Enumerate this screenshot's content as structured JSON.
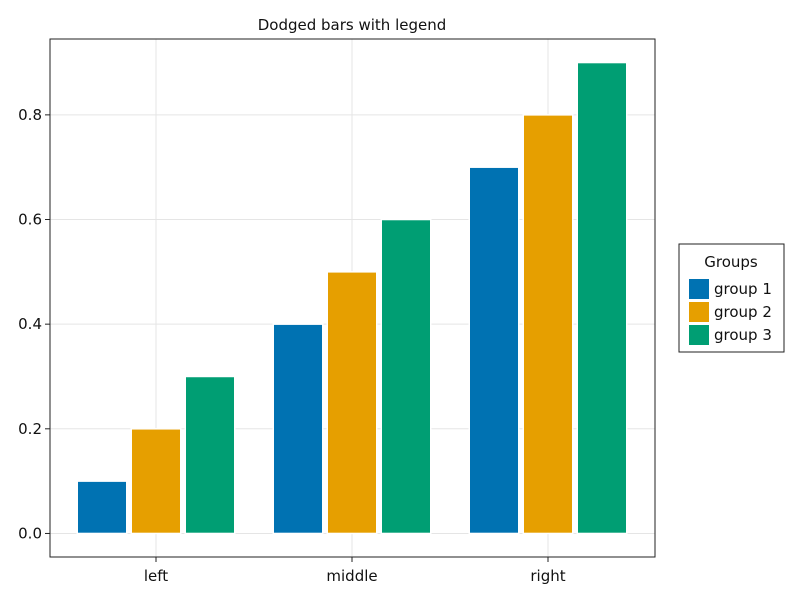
{
  "chart_data": {
    "type": "bar",
    "title": "Dodged bars with legend",
    "xlabel": "",
    "ylabel": "",
    "categories": [
      "left",
      "middle",
      "right"
    ],
    "series": [
      {
        "name": "group 1",
        "color": "#0072b2",
        "values": [
          0.1,
          0.4,
          0.7
        ]
      },
      {
        "name": "group 2",
        "color": "#e69f00",
        "values": [
          0.2,
          0.5,
          0.8
        ]
      },
      {
        "name": "group 3",
        "color": "#009e73",
        "values": [
          0.3,
          0.6,
          0.9
        ]
      }
    ],
    "ylim": [
      -0.045,
      0.945
    ],
    "yticks": [
      0.0,
      0.2,
      0.4,
      0.6,
      0.8
    ],
    "ytick_labels": [
      "0.0",
      "0.2",
      "0.4",
      "0.6",
      "0.8"
    ],
    "grid": true,
    "legend": {
      "title": "Groups",
      "placement": "right"
    }
  }
}
